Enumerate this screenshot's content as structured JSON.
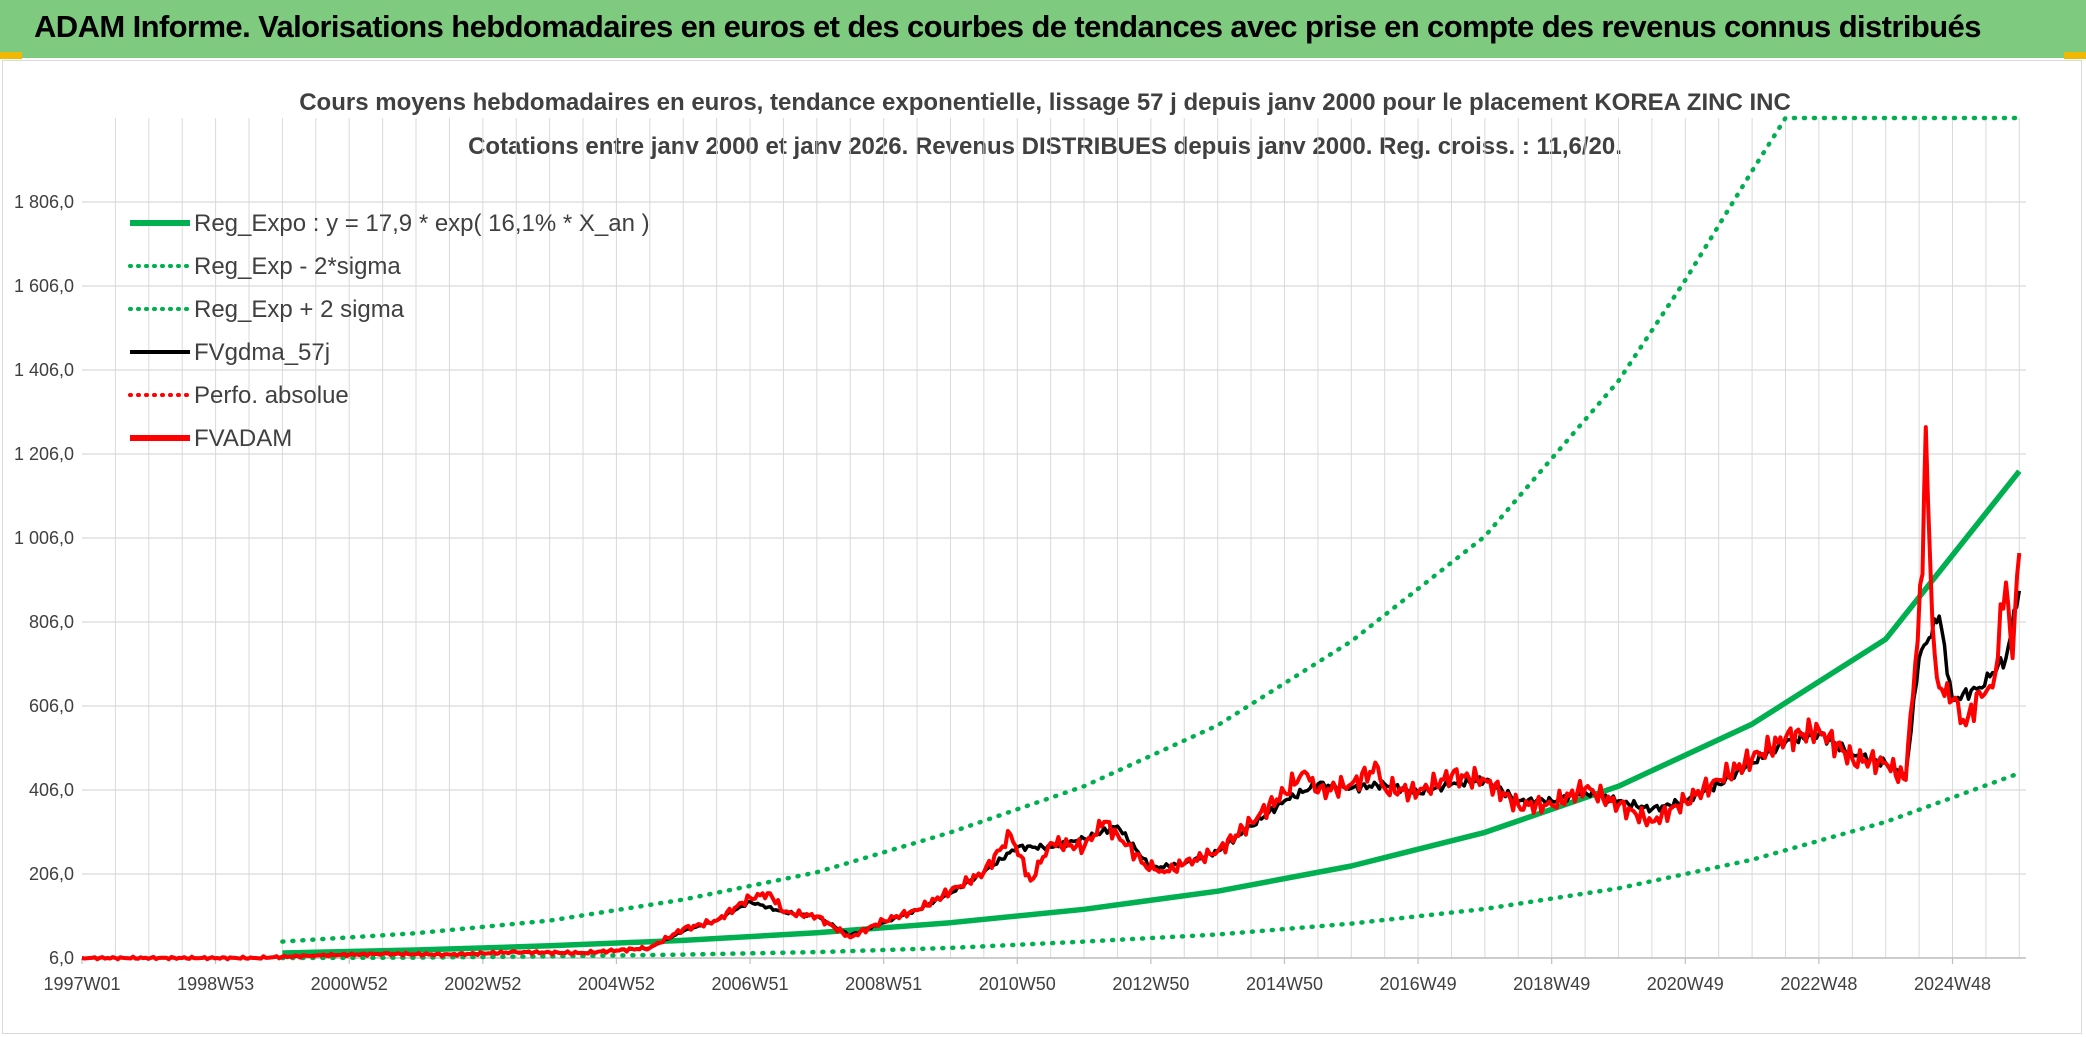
{
  "banner": {
    "title": "ADAM Informe. Valorisations hebdomadaires en euros et des courbes de tendances avec prise en compte des revenus connus distribués"
  },
  "colors": {
    "banner_bg": "#7ecb80",
    "green": "#00b050",
    "black": "#000000",
    "red": "#ff0000",
    "grid": "#d9d9d9"
  },
  "chart_data": {
    "type": "line",
    "title": "Cours moyens hebdomadaires en euros, tendance exponentielle, lissage 57 j depuis janv 2000 pour le placement KOREA ZINC INC",
    "subtitle": "Cotations entre janv 2000 et janv 2026. Revenus DISTRIBUES depuis janv 2000. Reg. croiss. : 11,6/20.",
    "xlabel": "",
    "ylabel": "",
    "x_tick_labels": [
      "1997W01",
      "1998W53",
      "2000W52",
      "2002W52",
      "2004W52",
      "2006W51",
      "2008W51",
      "2010W50",
      "2012W50",
      "2014W50",
      "2016W49",
      "2018W49",
      "2020W49",
      "2022W48",
      "2024W48"
    ],
    "x_tick_years": [
      1997.0,
      1999.0,
      2001.0,
      2003.0,
      2005.0,
      2007.0,
      2009.0,
      2011.0,
      2013.0,
      2015.0,
      2017.0,
      2019.0,
      2021.0,
      2023.0,
      2025.0
    ],
    "xlim": [
      1997.0,
      2026.1
    ],
    "y_tick_labels": [
      "6,0",
      "206,0",
      "406,0",
      "606,0",
      "806,0",
      "1 006,0",
      "1 206,0",
      "1 406,0",
      "1 606,0",
      "1 806,0"
    ],
    "y_tick_values": [
      6,
      206,
      406,
      606,
      806,
      1006,
      1206,
      1406,
      1606,
      1806
    ],
    "ylim": [
      6,
      2006
    ],
    "grid": true,
    "legend_position": "top-left",
    "legend": [
      {
        "label": "Reg_Expo : y = 17,9 * exp( 16,1% *  X_an )",
        "color": "#00b050",
        "style": "solid-thick"
      },
      {
        "label": "Reg_Exp - 2*sigma",
        "color": "#00b050",
        "style": "dotted"
      },
      {
        "label": "Reg_Exp + 2 sigma",
        "color": "#00b050",
        "style": "dotted"
      },
      {
        "label": "FVgdma_57j",
        "color": "#000000",
        "style": "solid"
      },
      {
        "label": "Perfo. absolue",
        "color": "#ff0000",
        "style": "dotted"
      },
      {
        "label": "FVADAM",
        "color": "#ff0000",
        "style": "solid-thick"
      }
    ],
    "series": [
      {
        "name": "Reg_Expo",
        "color": "#00b050",
        "x": [
          2000.0,
          2002.0,
          2004.0,
          2006.0,
          2008.0,
          2010.0,
          2012.0,
          2014.0,
          2016.0,
          2018.0,
          2020.0,
          2022.0,
          2024.0,
          2026.0
        ],
        "y": [
          18,
          25,
          35,
          48,
          66,
          90,
          122,
          165,
          225,
          305,
          415,
          563,
          765,
          1165
        ]
      },
      {
        "name": "Reg_Exp - 2*sigma",
        "color": "#00b050",
        "x": [
          2000.0,
          2002.0,
          2004.0,
          2006.0,
          2008.0,
          2010.0,
          2012.0,
          2014.0,
          2016.0,
          2018.0,
          2020.0,
          2022.0,
          2024.0,
          2026.0
        ],
        "y": [
          6,
          7,
          10,
          14,
          20,
          30,
          45,
          62,
          88,
          123,
          172,
          240,
          330,
          446
        ]
      },
      {
        "name": "Reg_Exp + 2 sigma",
        "color": "#00b050",
        "x": [
          2000.0,
          2002.0,
          2004.0,
          2006.0,
          2008.0,
          2010.0,
          2012.0,
          2014.0,
          2016.0,
          2018.0,
          2020.0,
          2021.0,
          2022.0,
          2022.5,
          2023.0,
          2026.0
        ],
        "y": [
          45,
          65,
          95,
          145,
          210,
          305,
          415,
          560,
          760,
          1010,
          1380,
          1620,
          1880,
          2006,
          2006,
          2006
        ]
      },
      {
        "name": "FVgdma_57j",
        "color": "#000000",
        "x": [
          1997.0,
          1999.6,
          2000.5,
          2001.5,
          2002.5,
          2003.5,
          2004.5,
          2005.5,
          2006.0,
          2006.5,
          2007.0,
          2007.5,
          2008.0,
          2008.5,
          2009.0,
          2009.5,
          2010.0,
          2010.5,
          2011.0,
          2011.5,
          2012.0,
          2012.5,
          2013.0,
          2013.5,
          2014.0,
          2014.5,
          2015.0,
          2015.5,
          2016.0,
          2016.5,
          2017.0,
          2017.5,
          2018.0,
          2018.5,
          2019.0,
          2019.5,
          2020.0,
          2020.5,
          2021.0,
          2021.5,
          2022.0,
          2022.5,
          2023.0,
          2023.5,
          2024.0,
          2024.3,
          2024.5,
          2024.8,
          2025.0,
          2025.4,
          2025.8,
          2026.0
        ],
        "y": [
          6,
          6,
          12,
          16,
          14,
          20,
          18,
          30,
          70,
          95,
          140,
          115,
          105,
          60,
          90,
          120,
          160,
          210,
          270,
          270,
          290,
          320,
          220,
          230,
          260,
          320,
          380,
          420,
          410,
          420,
          400,
          420,
          430,
          380,
          380,
          400,
          380,
          360,
          380,
          420,
          470,
          520,
          540,
          490,
          470,
          440,
          720,
          820,
          620,
          650,
          720,
          880
        ]
      },
      {
        "name": "FVADAM",
        "color": "#ff0000",
        "x": [
          1997.0,
          1999.6,
          2000.5,
          2001.5,
          2002.5,
          2003.5,
          2004.5,
          2005.5,
          2006.0,
          2006.5,
          2007.0,
          2007.3,
          2007.5,
          2008.0,
          2008.5,
          2009.0,
          2009.5,
          2010.0,
          2010.5,
          2010.9,
          2011.2,
          2011.5,
          2012.0,
          2012.3,
          2012.5,
          2012.9,
          2013.2,
          2013.5,
          2014.0,
          2014.5,
          2015.0,
          2015.3,
          2015.5,
          2016.0,
          2016.4,
          2016.5,
          2017.0,
          2017.5,
          2018.0,
          2018.5,
          2019.0,
          2019.5,
          2020.0,
          2020.5,
          2021.0,
          2021.5,
          2022.0,
          2022.5,
          2023.0,
          2023.5,
          2024.0,
          2024.3,
          2024.55,
          2024.6,
          2024.7,
          2024.8,
          2025.0,
          2025.2,
          2025.4,
          2025.6,
          2025.8,
          2025.9,
          2026.0
        ],
        "y": [
          6,
          6,
          12,
          16,
          14,
          20,
          18,
          30,
          75,
          95,
          150,
          160,
          115,
          105,
          55,
          95,
          120,
          165,
          210,
          300,
          190,
          280,
          270,
          330,
          300,
          230,
          210,
          230,
          260,
          330,
          400,
          450,
          400,
          420,
          460,
          410,
          400,
          440,
          430,
          370,
          370,
          410,
          370,
          330,
          380,
          430,
          480,
          530,
          550,
          480,
          470,
          430,
          920,
          1270,
          800,
          650,
          620,
          560,
          640,
          650,
          900,
          720,
          970
        ]
      }
    ]
  }
}
